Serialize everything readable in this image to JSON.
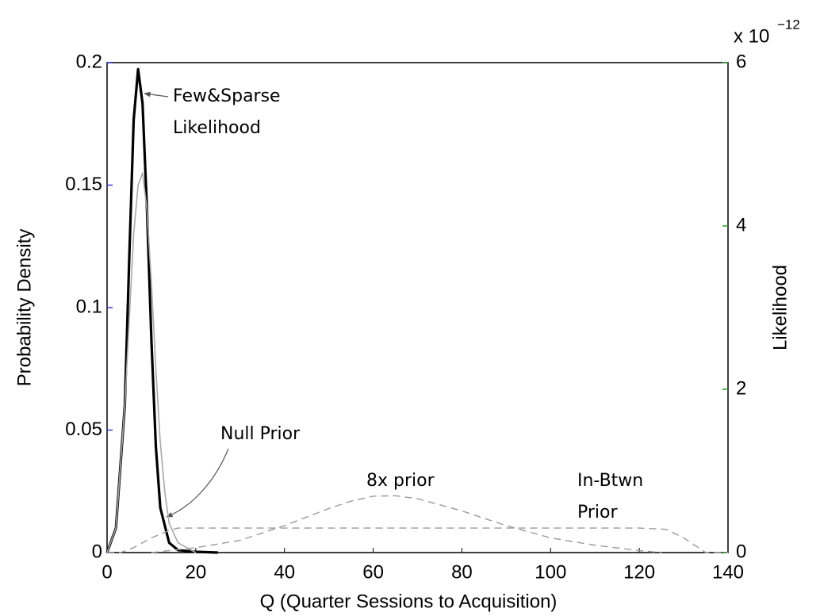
{
  "chart_data": {
    "type": "line",
    "x_label": "Q (Quarter Sessions to Acquisition)",
    "y_label": "Probability Density",
    "y2_label": "Likelihood",
    "y2_multiplier": "x 10",
    "y2_exponent": "−12",
    "xlim": [
      0,
      140
    ],
    "xticks": [
      0,
      20,
      40,
      60,
      80,
      100,
      120,
      140
    ],
    "ylim": [
      0,
      0.2
    ],
    "yticks": [
      0,
      0.05,
      0.1,
      0.15,
      0.2
    ],
    "y2lim": [
      0,
      6
    ],
    "y2ticks": [
      0,
      2,
      4,
      6
    ],
    "y_tick_color": "#3a3ad8",
    "y2_tick_color": "#2e9a2e",
    "series": [
      {
        "name": "Few&Sparse Likelihood",
        "axis": "y2",
        "color": "#000000",
        "width": 3.2,
        "dashed": false,
        "x": [
          0,
          2,
          4,
          5,
          6,
          7,
          8,
          9,
          10,
          11,
          12,
          14,
          16,
          20,
          25
        ],
        "values": [
          0,
          0.3,
          1.8,
          3.6,
          5.3,
          5.92,
          5.5,
          4.2,
          2.6,
          1.3,
          0.55,
          0.12,
          0.03,
          0.01,
          0
        ]
      },
      {
        "name": "Null Prior",
        "color": "#a8a8a8",
        "width": 1.6,
        "dashed": false,
        "x": [
          0,
          2,
          4,
          6,
          7,
          8,
          9,
          10,
          11,
          12,
          13,
          14,
          16,
          20
        ],
        "values": [
          0,
          0.01,
          0.06,
          0.13,
          0.15,
          0.155,
          0.14,
          0.11,
          0.075,
          0.045,
          0.025,
          0.012,
          0.004,
          0
        ]
      },
      {
        "name": "8x prior",
        "color": "#9a9a9a",
        "width": 1.4,
        "dashed": true,
        "x": [
          10,
          20,
          30,
          40,
          50,
          55,
          60,
          65,
          70,
          80,
          90,
          100,
          110,
          120,
          125
        ],
        "values": [
          0,
          0.002,
          0.005,
          0.011,
          0.018,
          0.021,
          0.023,
          0.0232,
          0.022,
          0.017,
          0.011,
          0.006,
          0.003,
          0.0008,
          0
        ]
      },
      {
        "name": "In-Btwn Prior",
        "color": "#9a9a9a",
        "width": 1.4,
        "dashed": true,
        "x": [
          0,
          3,
          6,
          10,
          14,
          16,
          60,
          120,
          126,
          130,
          135,
          140
        ],
        "values": [
          0,
          0,
          0.002,
          0.006,
          0.009,
          0.01,
          0.01,
          0.01,
          0.0095,
          0.006,
          0,
          0
        ]
      }
    ]
  }
}
